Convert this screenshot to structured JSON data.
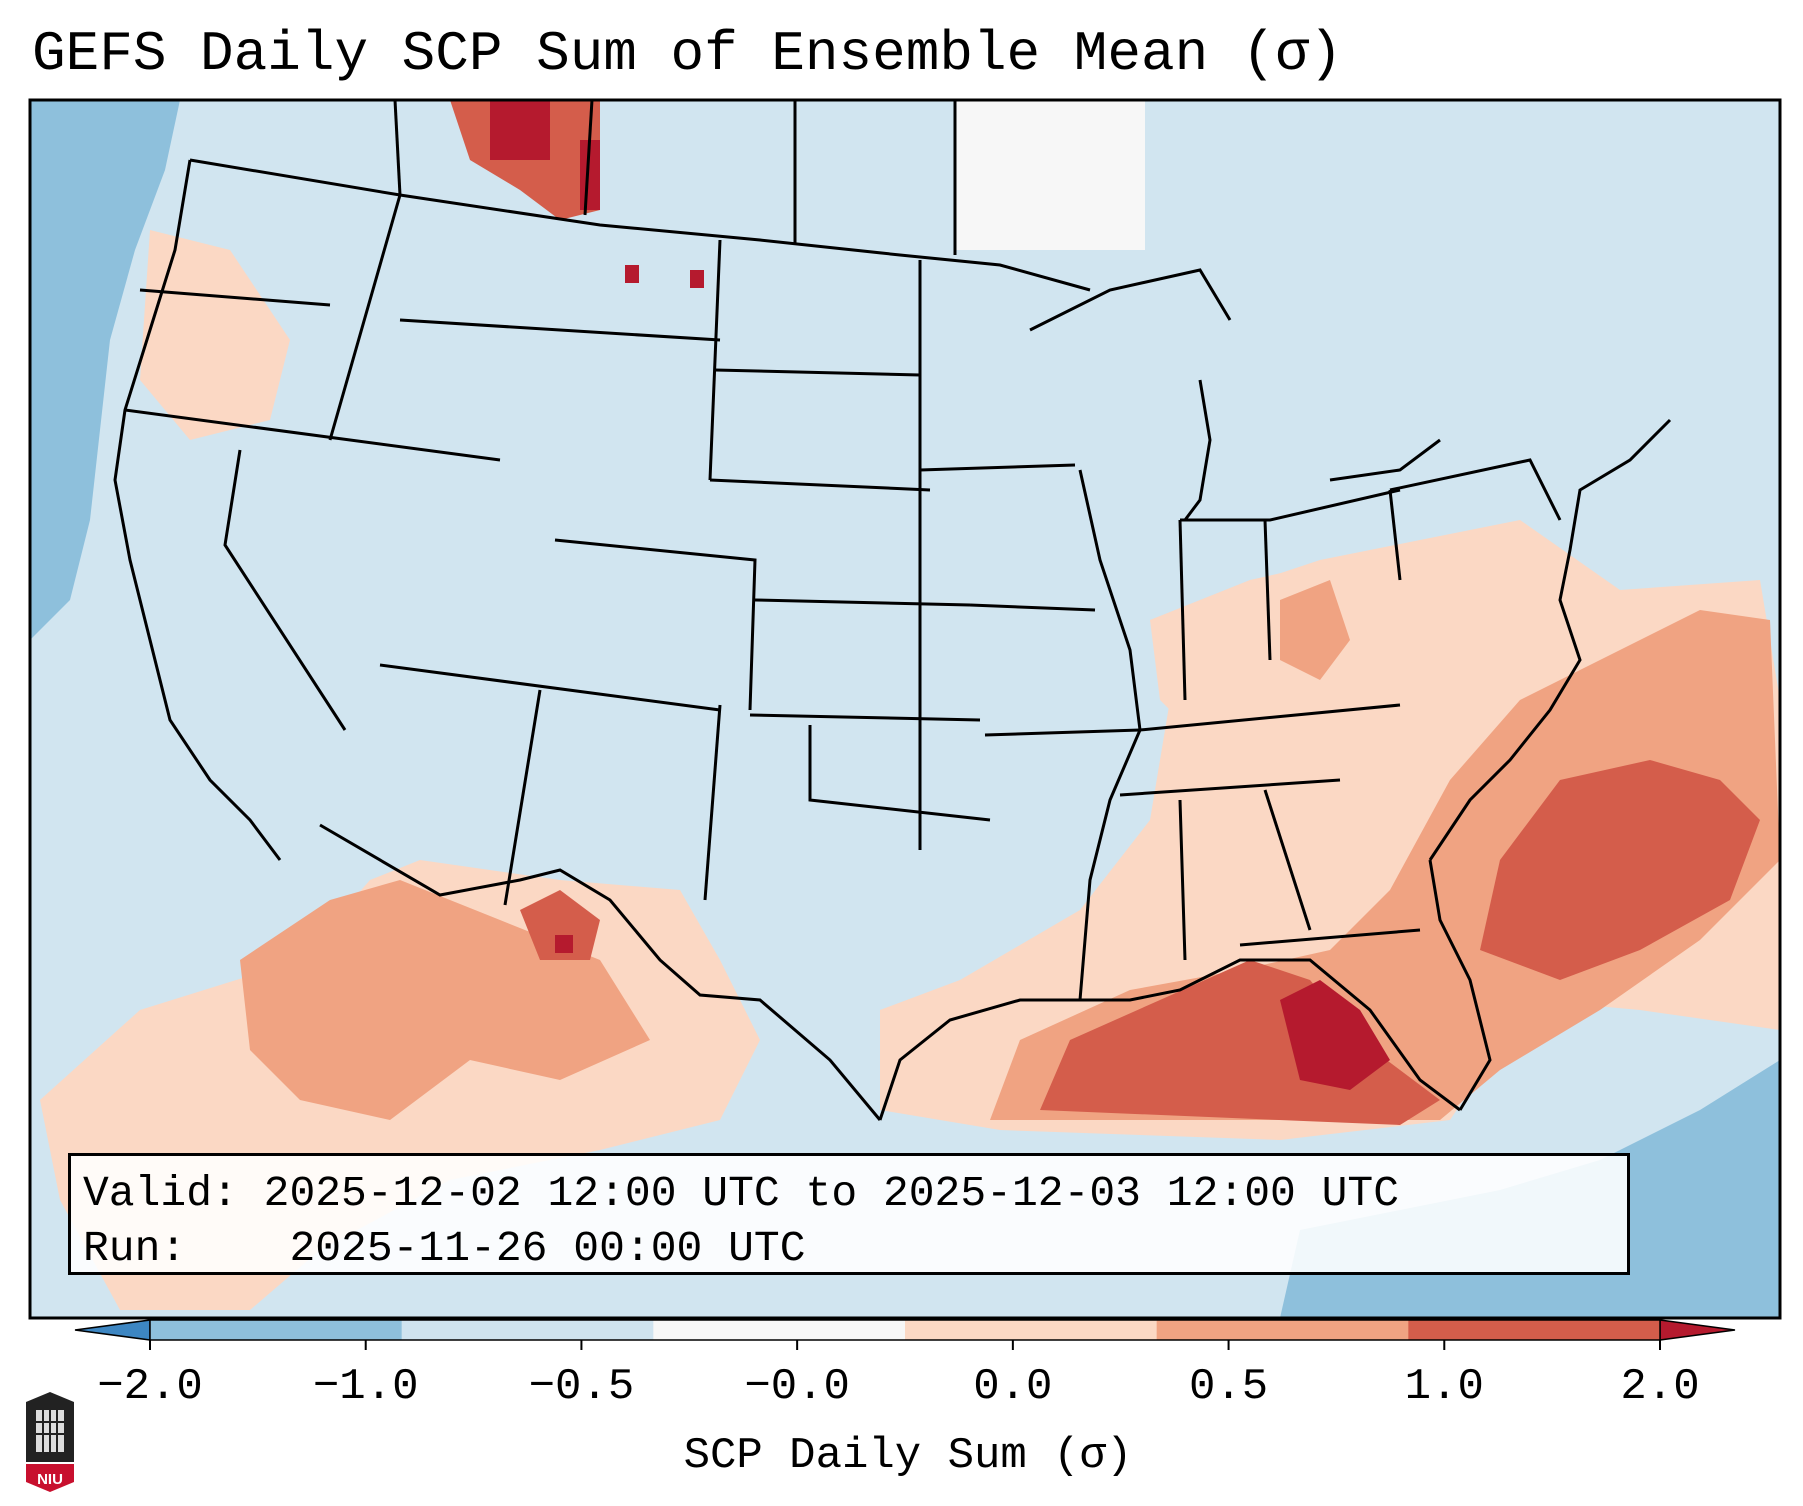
{
  "title": "GEFS Daily SCP Sum of Ensemble Mean (σ)",
  "info": {
    "valid_label": "Valid:",
    "valid_value": "2025-12-02 12:00 UTC to 2025-12-03 12:00 UTC",
    "run_label": "Run:",
    "run_value": "2025-11-26 00:00 UTC"
  },
  "colorbar": {
    "title": "SCP Daily Sum (σ)",
    "ticks": [
      "−2.0",
      "−1.0",
      "−0.5",
      "−0.0",
      "0.0",
      "0.5",
      "1.0",
      "2.0"
    ],
    "colors": [
      "#3d86c2",
      "#8ec0dc",
      "#cfe3ef",
      "#f7f7f7",
      "#fbd8c4",
      "#f0a382",
      "#d45d4b",
      "#b51a2e"
    ],
    "extend": "both"
  },
  "logo": {
    "text": "NIU"
  },
  "colors": {
    "ocean": "#8ec0dc",
    "land_neutral": "#d1e5f0",
    "border": "#000000"
  }
}
